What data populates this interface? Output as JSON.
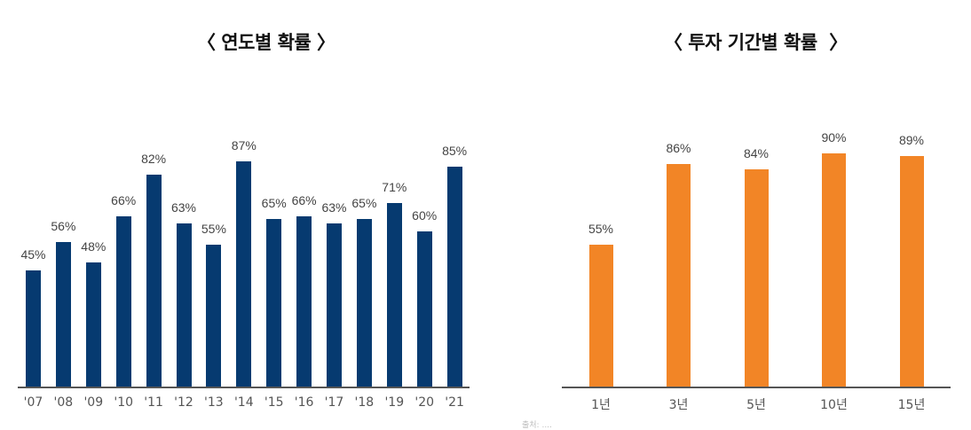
{
  "titles": {
    "left": "〈 연도별 확률 〉",
    "right": "〈 투자 기간별 확률  〉"
  },
  "footnote": "출처: ....",
  "colors": {
    "navy": "#063a70",
    "orange": "#f28526",
    "axis": "#555555"
  },
  "chart_data": [
    {
      "type": "bar",
      "title": "연도별 확률",
      "xlabel": "",
      "ylabel": "",
      "categories": [
        "'07",
        "'08",
        "'09",
        "'10",
        "'11",
        "'12",
        "'13",
        "'14",
        "'15",
        "'16",
        "'17",
        "'18",
        "'19",
        "'20",
        "'21"
      ],
      "values": [
        45,
        56,
        48,
        66,
        82,
        63,
        55,
        87,
        65,
        66,
        63,
        65,
        71,
        60,
        85
      ],
      "labels": [
        "45%",
        "56%",
        "48%",
        "66%",
        "82%",
        "63%",
        "55%",
        "87%",
        "65%",
        "66%",
        "63%",
        "65%",
        "71%",
        "60%",
        "85%"
      ],
      "unit": "%",
      "color": "#063a70",
      "grid": false,
      "legend": null
    },
    {
      "type": "bar",
      "title": "투자 기간별 확률",
      "xlabel": "",
      "ylabel": "",
      "categories": [
        "1년",
        "3년",
        "5년",
        "10년",
        "15년"
      ],
      "values": [
        55,
        86,
        84,
        90,
        89
      ],
      "labels": [
        "55%",
        "86%",
        "84%",
        "90%",
        "89%"
      ],
      "unit": "%",
      "color": "#f28526",
      "grid": false,
      "legend": null
    }
  ]
}
